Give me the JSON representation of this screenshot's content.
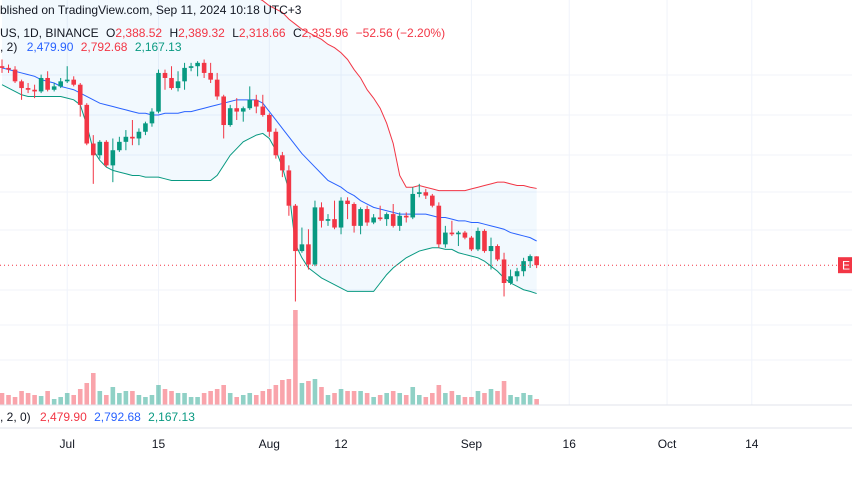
{
  "header": {
    "published": "blished on TradingView.com, Sep 11, 2024 10:18 UTC+3",
    "symbol_line": [
      "US, 1D, BINANCE",
      "O",
      "2,388.52",
      "H",
      "2,389.32",
      "L",
      "2,318.66",
      "C",
      "2,335.96",
      "−52.56 (−2.20%)"
    ],
    "bb_line": [
      ", 2)",
      "2,479.90",
      "2,792.68",
      "2,167.13"
    ],
    "volume_line": [
      ", 2, 0)",
      "2,479.90",
      "2,792.68",
      "2,167.13"
    ]
  },
  "price_label": "E",
  "chart_data": {
    "type": "candlestick",
    "up_color": "#089981",
    "down_color": "#f23645",
    "ylim": [
      1504,
      3914
    ],
    "x": [
      "2024-06-21",
      "2024-06-22",
      "2024-06-23",
      "2024-06-24",
      "2024-06-25",
      "2024-06-26",
      "2024-06-27",
      "2024-06-28",
      "2024-06-29",
      "2024-06-30",
      "2024-07-01",
      "2024-07-02",
      "2024-07-03",
      "2024-07-04",
      "2024-07-05",
      "2024-07-06",
      "2024-07-07",
      "2024-07-08",
      "2024-07-09",
      "2024-07-10",
      "2024-07-11",
      "2024-07-12",
      "2024-07-13",
      "2024-07-14",
      "2024-07-15",
      "2024-07-16",
      "2024-07-17",
      "2024-07-18",
      "2024-07-19",
      "2024-07-20",
      "2024-07-21",
      "2024-07-22",
      "2024-07-23",
      "2024-07-24",
      "2024-07-25",
      "2024-07-26",
      "2024-07-27",
      "2024-07-28",
      "2024-07-29",
      "2024-07-30",
      "2024-07-31",
      "2024-08-01",
      "2024-08-02",
      "2024-08-03",
      "2024-08-04",
      "2024-08-05",
      "2024-08-06",
      "2024-08-07",
      "2024-08-08",
      "2024-08-09",
      "2024-08-10",
      "2024-08-11",
      "2024-08-12",
      "2024-08-13",
      "2024-08-14",
      "2024-08-15",
      "2024-08-16",
      "2024-08-17",
      "2024-08-18",
      "2024-08-19",
      "2024-08-20",
      "2024-08-21",
      "2024-08-22",
      "2024-08-23",
      "2024-08-24",
      "2024-08-25",
      "2024-08-26",
      "2024-08-27",
      "2024-08-28",
      "2024-08-29",
      "2024-08-30",
      "2024-08-31",
      "2024-09-01",
      "2024-09-02",
      "2024-09-03",
      "2024-09-04",
      "2024-09-05",
      "2024-09-06",
      "2024-09-07",
      "2024-09-08",
      "2024-09-09",
      "2024-09-10",
      "2024-09-11"
    ],
    "open": [
      3520,
      3510,
      3500,
      3430,
      3390,
      3380,
      3370,
      3450,
      3380,
      3400,
      3430,
      3440,
      3410,
      3290,
      3060,
      2990,
      3070,
      2930,
      3020,
      3070,
      3100,
      3090,
      3130,
      3180,
      3250,
      3480,
      3450,
      3390,
      3430,
      3510,
      3520,
      3540,
      3480,
      3440,
      3340,
      3170,
      3270,
      3250,
      3270,
      3320,
      3280,
      3230,
      3130,
      2990,
      2900,
      2690,
      2420,
      2460,
      2340,
      2680,
      2600,
      2610,
      2560,
      2720,
      2700,
      2570,
      2670,
      2590,
      2620,
      2610,
      2640,
      2570,
      2630,
      2620,
      2760,
      2770,
      2750,
      2690,
      2460,
      2530,
      2520,
      2530,
      2500,
      2430,
      2540,
      2420,
      2450,
      2370,
      2230,
      2270,
      2300,
      2360,
      2388.52
    ],
    "high": [
      3560,
      3530,
      3520,
      3440,
      3420,
      3410,
      3470,
      3490,
      3420,
      3450,
      3520,
      3460,
      3420,
      3300,
      3110,
      3080,
      3080,
      3090,
      3100,
      3140,
      3200,
      3150,
      3190,
      3270,
      3500,
      3500,
      3520,
      3490,
      3540,
      3540,
      3550,
      3560,
      3540,
      3480,
      3350,
      3290,
      3330,
      3280,
      3400,
      3350,
      3350,
      3240,
      3150,
      3010,
      2930,
      2700,
      2560,
      2550,
      2720,
      2710,
      2640,
      2720,
      2740,
      2740,
      2710,
      2680,
      2690,
      2640,
      2690,
      2650,
      2700,
      2650,
      2650,
      2800,
      2820,
      2790,
      2760,
      2710,
      2570,
      2600,
      2540,
      2540,
      2510,
      2560,
      2550,
      2500,
      2460,
      2410,
      2310,
      2320,
      2380,
      2400,
      2389.32
    ],
    "low": [
      3480,
      3480,
      3420,
      3320,
      3360,
      3330,
      3360,
      3370,
      3370,
      3390,
      3420,
      3400,
      3220,
      3050,
      2820,
      2970,
      2920,
      2830,
      3010,
      3020,
      3050,
      3050,
      3110,
      3160,
      3240,
      3380,
      3380,
      3370,
      3380,
      3490,
      3460,
      3450,
      3420,
      3320,
      3090,
      3160,
      3200,
      3190,
      3260,
      3240,
      3220,
      3100,
      2970,
      2860,
      2630,
      2120,
      2410,
      2310,
      2330,
      2560,
      2570,
      2550,
      2520,
      2610,
      2530,
      2520,
      2570,
      2580,
      2600,
      2570,
      2560,
      2540,
      2590,
      2610,
      2740,
      2730,
      2680,
      2440,
      2440,
      2510,
      2450,
      2490,
      2420,
      2420,
      2410,
      2310,
      2360,
      2150,
      2220,
      2240,
      2270,
      2320,
      2318.66
    ],
    "close": [
      3510,
      3500,
      3430,
      3390,
      3380,
      3370,
      3450,
      3380,
      3400,
      3430,
      3440,
      3410,
      3290,
      3060,
      2990,
      3070,
      2930,
      3020,
      3070,
      3100,
      3090,
      3130,
      3180,
      3250,
      3480,
      3450,
      3390,
      3430,
      3510,
      3520,
      3540,
      3480,
      3440,
      3340,
      3170,
      3270,
      3250,
      3270,
      3320,
      3280,
      3230,
      3130,
      2990,
      2900,
      2690,
      2420,
      2460,
      2340,
      2680,
      2600,
      2610,
      2560,
      2720,
      2700,
      2570,
      2670,
      2590,
      2620,
      2610,
      2640,
      2570,
      2630,
      2620,
      2760,
      2770,
      2750,
      2690,
      2460,
      2530,
      2520,
      2530,
      2500,
      2430,
      2540,
      2420,
      2450,
      2370,
      2230,
      2270,
      2300,
      2360,
      2390,
      2335.96
    ],
    "bb_upper": {
      "color": "#f23645",
      "values": [
        4000,
        4000,
        4010,
        4010,
        4020,
        4020,
        4030,
        4030,
        4040,
        4040,
        4050,
        4060,
        4080,
        4100,
        4120,
        4140,
        4150,
        4160,
        4170,
        4170,
        4160,
        4150,
        4140,
        4130,
        4120,
        4110,
        4100,
        4080,
        4060,
        4040,
        4020,
        4010,
        4000,
        3990,
        3980,
        3970,
        3960,
        3950,
        3940,
        3930,
        3910,
        3880,
        3860,
        3840,
        3800,
        3770,
        3740,
        3720,
        3700,
        3680,
        3650,
        3630,
        3600,
        3560,
        3500,
        3450,
        3380,
        3330,
        3270,
        3180,
        3060,
        2870,
        2800,
        2800,
        2810,
        2800,
        2790,
        2780,
        2780,
        2780,
        2780,
        2780,
        2790,
        2800,
        2810,
        2820,
        2830,
        2830,
        2820,
        2810,
        2810,
        2800,
        2792.68
      ]
    },
    "bb_middle": {
      "color": "#2962ff",
      "values": [
        3510,
        3500,
        3490,
        3480,
        3470,
        3460,
        3440,
        3430,
        3420,
        3400,
        3390,
        3380,
        3360,
        3340,
        3320,
        3300,
        3290,
        3280,
        3270,
        3260,
        3250,
        3240,
        3240,
        3230,
        3230,
        3240,
        3240,
        3240,
        3250,
        3250,
        3260,
        3270,
        3280,
        3290,
        3300,
        3310,
        3320,
        3320,
        3320,
        3320,
        3300,
        3250,
        3200,
        3150,
        3100,
        3050,
        3000,
        2960,
        2920,
        2880,
        2840,
        2820,
        2800,
        2770,
        2750,
        2720,
        2700,
        2680,
        2670,
        2660,
        2650,
        2640,
        2640,
        2640,
        2640,
        2640,
        2630,
        2620,
        2620,
        2610,
        2600,
        2600,
        2590,
        2590,
        2580,
        2570,
        2560,
        2550,
        2530,
        2520,
        2510,
        2500,
        2479.9
      ]
    },
    "bb_lower": {
      "color": "#089981",
      "values": [
        3410,
        3390,
        3370,
        3350,
        3340,
        3340,
        3340,
        3340,
        3340,
        3340,
        3330,
        3320,
        3290,
        3170,
        3020,
        2960,
        2920,
        2900,
        2890,
        2880,
        2870,
        2870,
        2860,
        2860,
        2860,
        2850,
        2840,
        2840,
        2840,
        2840,
        2840,
        2840,
        2840,
        2870,
        2930,
        2990,
        3030,
        3070,
        3090,
        3110,
        3120,
        3090,
        3020,
        2920,
        2780,
        2460,
        2380,
        2320,
        2290,
        2260,
        2240,
        2220,
        2200,
        2180,
        2180,
        2180,
        2180,
        2180,
        2230,
        2280,
        2320,
        2350,
        2380,
        2400,
        2420,
        2430,
        2440,
        2440,
        2430,
        2430,
        2410,
        2400,
        2390,
        2380,
        2360,
        2330,
        2300,
        2260,
        2230,
        2210,
        2190,
        2180,
        2167.13
      ]
    },
    "band_fill": "rgba(33,150,243,0.06)",
    "volume": {
      "lim": [
        0,
        100
      ],
      "values": [
        12,
        10,
        8,
        14,
        12,
        10,
        9,
        14,
        6,
        8,
        12,
        10,
        16,
        22,
        32,
        14,
        10,
        18,
        12,
        14,
        14,
        10,
        8,
        10,
        20,
        16,
        14,
        12,
        12,
        8,
        8,
        12,
        14,
        16,
        20,
        12,
        8,
        10,
        12,
        10,
        14,
        16,
        20,
        25,
        26,
        95,
        22,
        24,
        26,
        18,
        10,
        12,
        16,
        14,
        14,
        14,
        12,
        8,
        10,
        12,
        14,
        12,
        10,
        18,
        10,
        8,
        12,
        20,
        12,
        14,
        10,
        8,
        8,
        14,
        12,
        16,
        14,
        24,
        10,
        8,
        12,
        10,
        6
      ]
    },
    "xticks": [
      {
        "value": "2024-07-01",
        "label": "Jul"
      },
      {
        "value": "2024-07-15",
        "label": "15"
      },
      {
        "value": "2024-08-01",
        "label": "Aug"
      },
      {
        "value": "2024-08-12",
        "label": "12"
      },
      {
        "value": "2024-09-01",
        "label": "Sep"
      },
      {
        "value": "2024-09-16",
        "label": "16"
      },
      {
        "value": "2024-10-01",
        "label": "Oct"
      },
      {
        "value": "2024-10-14",
        "label": "14"
      }
    ]
  }
}
